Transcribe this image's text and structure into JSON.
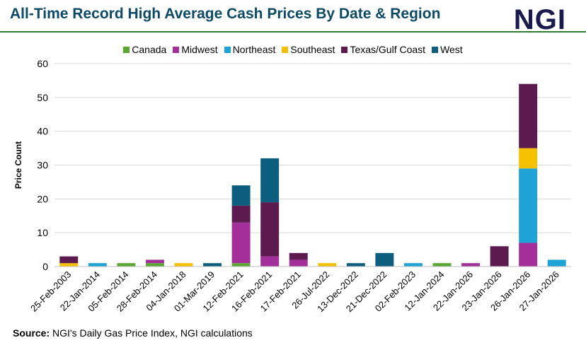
{
  "title": "All-Time Record High Average Cash Prices By Date & Region",
  "logo": "NGI",
  "source_label": "Source:",
  "source_text": "NGI's Daily Gas Price Index, NGI calculations",
  "chart_data": {
    "type": "bar",
    "stacked": true,
    "title": "All-Time Record High Average Cash Prices By Date & Region",
    "xlabel": "",
    "ylabel": "Price Count",
    "ylim": [
      0,
      60
    ],
    "yticks": [
      0,
      10,
      20,
      30,
      40,
      50,
      60
    ],
    "grid": true,
    "legend_position": "top",
    "categories": [
      "25-Feb-2003",
      "22-Jan-2014",
      "05-Feb-2014",
      "28-Feb-2014",
      "04-Jan-2018",
      "01-Mar-2019",
      "12-Feb-2021",
      "16-Feb-2021",
      "17-Feb-2021",
      "26-Jul-2022",
      "13-Dec-2022",
      "21-Dec-2022",
      "02-Feb-2023",
      "12-Jan-2024",
      "22-Jan-2026",
      "23-Jan-2026",
      "26-Jan-2026",
      "27-Jan-2026"
    ],
    "series": [
      {
        "name": "Canada",
        "color": "#5aa832",
        "values": [
          0,
          0,
          1,
          1,
          0,
          0,
          1,
          0,
          0,
          0,
          0,
          0,
          0,
          1,
          0,
          0,
          0,
          0
        ]
      },
      {
        "name": "Midwest",
        "color": "#a22f9a",
        "values": [
          0,
          0,
          0,
          1,
          0,
          0,
          12,
          3,
          2,
          0,
          0,
          0,
          0,
          0,
          1,
          0,
          7,
          0
        ]
      },
      {
        "name": "Northeast",
        "color": "#1fa2d6",
        "values": [
          0,
          1,
          0,
          0,
          0,
          0,
          0,
          0,
          0,
          0,
          0,
          0,
          1,
          0,
          0,
          0,
          22,
          2
        ]
      },
      {
        "name": "Southeast",
        "color": "#f5c000",
        "values": [
          1,
          0,
          0,
          0,
          1,
          0,
          0,
          0,
          0,
          1,
          0,
          0,
          0,
          0,
          0,
          0,
          6,
          0
        ]
      },
      {
        "name": "Texas/Gulf Coast",
        "color": "#5c1a4f",
        "values": [
          2,
          0,
          0,
          0,
          0,
          0,
          5,
          16,
          2,
          0,
          0,
          0,
          0,
          0,
          0,
          6,
          19,
          0
        ]
      },
      {
        "name": "West",
        "color": "#0d5e7e",
        "values": [
          0,
          0,
          0,
          0,
          0,
          1,
          6,
          13,
          0,
          0,
          1,
          4,
          0,
          0,
          0,
          0,
          0,
          0
        ]
      }
    ]
  }
}
